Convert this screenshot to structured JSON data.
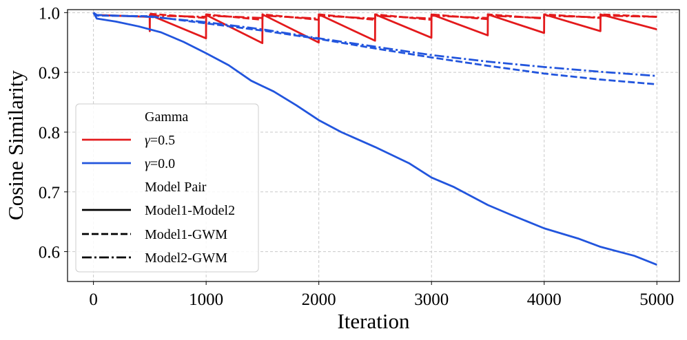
{
  "chart_data": {
    "type": "line",
    "title": "",
    "xlabel": "Iteration",
    "ylabel": "Cosine Similarity",
    "xlim": [
      -230,
      5200
    ],
    "ylim": [
      0.55,
      1.005
    ],
    "xticks": [
      0,
      1000,
      2000,
      3000,
      4000,
      5000
    ],
    "yticks": [
      0.6,
      0.7,
      0.8,
      0.9,
      1.0
    ],
    "xtick_labels": [
      "0",
      "1000",
      "2000",
      "3000",
      "4000",
      "5000"
    ],
    "ytick_labels": [
      "0.6",
      "0.7",
      "0.8",
      "0.9",
      "1.0"
    ],
    "grid": true,
    "legend": {
      "placement": "lower-left",
      "gamma_title": "Gamma",
      "gamma_entries": [
        {
          "symbol": "γ",
          "text": "=0.5",
          "color": "#e31a1c"
        },
        {
          "symbol": "γ",
          "text": "=0.0",
          "color": "#2255dd"
        }
      ],
      "pair_title": "Model Pair",
      "pair_entries": [
        {
          "text": "Model1-Model2",
          "style": "solid"
        },
        {
          "text": "Model1-GWM",
          "style": "dashed"
        },
        {
          "text": "Model2-GWM",
          "style": "dashdot"
        }
      ]
    },
    "series": [
      {
        "name": "γ=0.5 Model1-Model2",
        "gamma": "0.5",
        "pair": "Model1-Model2",
        "color": "#e31a1c",
        "style": "solid",
        "points": [
          [
            0,
            1.0
          ],
          [
            25,
            0.996
          ],
          [
            499,
            0.993
          ],
          [
            500,
            0.969
          ],
          [
            501,
            0.996
          ],
          [
            999,
            0.957
          ],
          [
            1000,
            0.996
          ],
          [
            1499,
            0.949
          ],
          [
            1500,
            0.997
          ],
          [
            1999,
            0.95
          ],
          [
            2000,
            0.997
          ],
          [
            2499,
            0.953
          ],
          [
            2500,
            0.997
          ],
          [
            2999,
            0.958
          ],
          [
            3000,
            0.997
          ],
          [
            3499,
            0.962
          ],
          [
            3500,
            0.997
          ],
          [
            3999,
            0.966
          ],
          [
            4000,
            0.997
          ],
          [
            4499,
            0.969
          ],
          [
            4500,
            0.997
          ],
          [
            4999,
            0.972
          ],
          [
            5000,
            0.972
          ]
        ]
      },
      {
        "name": "γ=0.5 Model1-GWM",
        "gamma": "0.5",
        "pair": "Model1-GWM",
        "color": "#e31a1c",
        "style": "dashed",
        "points": [
          [
            500,
            0.998
          ],
          [
            999,
            0.991
          ],
          [
            1000,
            0.997
          ],
          [
            1499,
            0.988
          ],
          [
            1500,
            0.997
          ],
          [
            1999,
            0.988
          ],
          [
            2000,
            0.997
          ],
          [
            2499,
            0.988
          ],
          [
            2500,
            0.997
          ],
          [
            2999,
            0.988
          ],
          [
            3000,
            0.997
          ],
          [
            3499,
            0.989
          ],
          [
            3500,
            0.997
          ],
          [
            3999,
            0.99
          ],
          [
            4000,
            0.997
          ],
          [
            4499,
            0.991
          ],
          [
            4500,
            0.997
          ],
          [
            5000,
            0.993
          ]
        ]
      },
      {
        "name": "γ=0.5 Model2-GWM",
        "gamma": "0.5",
        "pair": "Model2-GWM",
        "color": "#e31a1c",
        "style": "dashdot",
        "points": [
          [
            500,
            0.995
          ],
          [
            999,
            0.993
          ],
          [
            1000,
            0.995
          ],
          [
            1499,
            0.991
          ],
          [
            1500,
            0.995
          ],
          [
            1999,
            0.99
          ],
          [
            2000,
            0.995
          ],
          [
            2499,
            0.99
          ],
          [
            2500,
            0.995
          ],
          [
            2999,
            0.99
          ],
          [
            3000,
            0.995
          ],
          [
            3499,
            0.991
          ],
          [
            3500,
            0.995
          ],
          [
            3999,
            0.991
          ],
          [
            4000,
            0.995
          ],
          [
            4499,
            0.992
          ],
          [
            4500,
            0.995
          ],
          [
            5000,
            0.993
          ]
        ]
      },
      {
        "name": "γ=0.0 Model1-Model2",
        "gamma": "0.0",
        "pair": "Model1-Model2",
        "color": "#2255dd",
        "style": "solid",
        "points": [
          [
            0,
            1.0
          ],
          [
            30,
            0.99
          ],
          [
            200,
            0.985
          ],
          [
            400,
            0.977
          ],
          [
            600,
            0.967
          ],
          [
            800,
            0.951
          ],
          [
            1000,
            0.932
          ],
          [
            1200,
            0.912
          ],
          [
            1400,
            0.886
          ],
          [
            1600,
            0.868
          ],
          [
            1800,
            0.845
          ],
          [
            2000,
            0.82
          ],
          [
            2200,
            0.8
          ],
          [
            2500,
            0.775
          ],
          [
            2800,
            0.748
          ],
          [
            3000,
            0.724
          ],
          [
            3200,
            0.708
          ],
          [
            3500,
            0.678
          ],
          [
            3700,
            0.662
          ],
          [
            4000,
            0.639
          ],
          [
            4300,
            0.622
          ],
          [
            4500,
            0.608
          ],
          [
            4800,
            0.593
          ],
          [
            5000,
            0.578
          ]
        ]
      },
      {
        "name": "γ=0.0 Model1-GWM",
        "gamma": "0.0",
        "pair": "Model1-GWM",
        "color": "#2255dd",
        "style": "dashed",
        "points": [
          [
            0,
            1.0
          ],
          [
            30,
            0.995
          ],
          [
            500,
            0.994
          ],
          [
            1000,
            0.982
          ],
          [
            1500,
            0.97
          ],
          [
            2000,
            0.956
          ],
          [
            2500,
            0.94
          ],
          [
            3000,
            0.925
          ],
          [
            3500,
            0.911
          ],
          [
            4000,
            0.898
          ],
          [
            4500,
            0.888
          ],
          [
            5000,
            0.88
          ]
        ]
      },
      {
        "name": "γ=0.0 Model2-GWM",
        "gamma": "0.0",
        "pair": "Model2-GWM",
        "color": "#2255dd",
        "style": "dashdot",
        "points": [
          [
            0,
            1.0
          ],
          [
            30,
            0.996
          ],
          [
            500,
            0.993
          ],
          [
            1000,
            0.984
          ],
          [
            1500,
            0.972
          ],
          [
            2000,
            0.957
          ],
          [
            2500,
            0.943
          ],
          [
            3000,
            0.929
          ],
          [
            3500,
            0.918
          ],
          [
            4000,
            0.909
          ],
          [
            4500,
            0.901
          ],
          [
            5000,
            0.894
          ]
        ]
      }
    ]
  }
}
